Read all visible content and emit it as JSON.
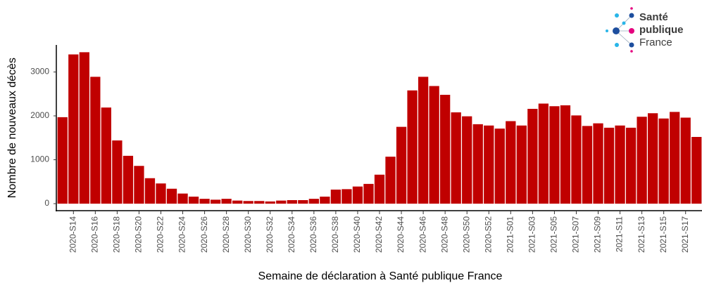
{
  "chart_data": {
    "type": "bar",
    "x_label": "Semaine de déclaration à Santé publique France",
    "y_label": "Nombre de nouveaux décès",
    "color": "#c00000",
    "grid": false,
    "categories": [
      null,
      "2020-S14",
      null,
      "2020-S16",
      null,
      "2020-S18",
      null,
      "2020-S20",
      null,
      "2020-S22",
      null,
      "2020-S24",
      null,
      "2020-S26",
      null,
      "2020-S28",
      null,
      "2020-S30",
      null,
      "2020-S32",
      null,
      "2020-S34",
      null,
      "2020-S36",
      null,
      "2020-S38",
      null,
      "2020-S40",
      null,
      "2020-S42",
      null,
      "2020-S44",
      null,
      "2020-S46",
      null,
      "2020-S48",
      null,
      "2020-S50",
      null,
      "2020-S52",
      null,
      "2021-S01",
      null,
      "2021-S03",
      null,
      "2021-S05",
      null,
      "2021-S07",
      null,
      "2021-S09",
      null,
      "2021-S11",
      null,
      "2021-S13",
      null,
      "2021-S15",
      null,
      "2021-S17",
      null
    ],
    "values": [
      1970,
      3400,
      3450,
      2890,
      2190,
      1440,
      1090,
      860,
      580,
      460,
      340,
      230,
      160,
      110,
      90,
      110,
      70,
      60,
      60,
      50,
      70,
      80,
      80,
      110,
      160,
      320,
      330,
      390,
      450,
      660,
      1070,
      1750,
      2580,
      2890,
      2680,
      2480,
      2080,
      1990,
      1810,
      1780,
      1710,
      1880,
      1780,
      2160,
      2280,
      2220,
      2240,
      2010,
      1770,
      1830,
      1730,
      1780,
      1730,
      1980,
      2060,
      1940,
      2090,
      1960,
      1520
    ],
    "ylim": [
      -160,
      3600
    ],
    "yticks": [
      0,
      1000,
      2000,
      3000
    ]
  },
  "logo": {
    "line1": "Santé",
    "line2": "publique",
    "line3": "France"
  }
}
